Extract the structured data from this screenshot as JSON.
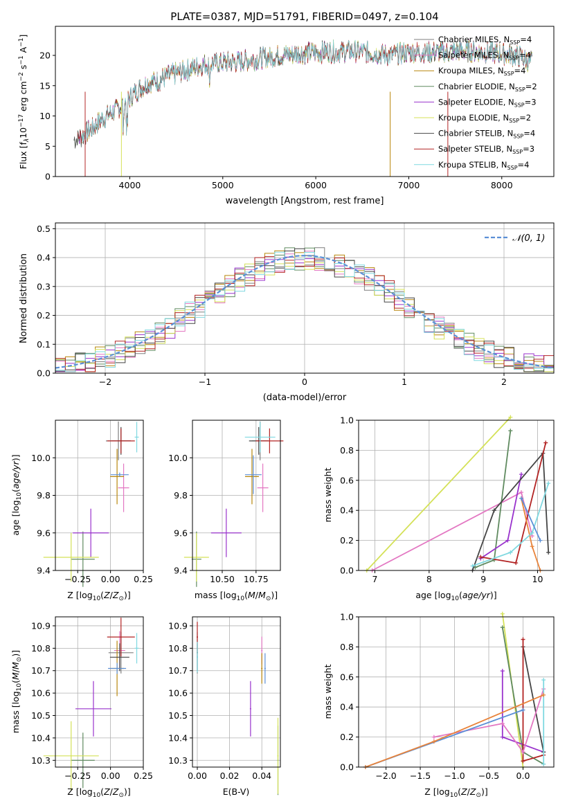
{
  "chart_data": [
    {
      "id": "spectrum",
      "type": "line",
      "title": "PLATE=0387, MJD=51791, FIBERID=0497, z=0.104",
      "xlabel": "wavelength [Angstrom, rest frame]",
      "ylabel": "Flux [f_λ 10^-17 erg cm^-2 s^-1 A^-1]",
      "xlim": [
        3200,
        8560
      ],
      "ylim": [
        0,
        24.8
      ],
      "xticks": [
        4000,
        5000,
        6000,
        7000,
        8000
      ],
      "yticks": [
        0,
        5,
        10,
        15,
        20
      ],
      "legend": "top-right",
      "x": [
        3400,
        3500,
        3600,
        3700,
        3800,
        3900,
        4000,
        4100,
        4200,
        4300,
        4400,
        4600,
        4800,
        5000,
        5200,
        5400,
        5600,
        5800,
        6000,
        6200,
        6400,
        6600,
        6800,
        7000,
        7200,
        7400,
        7600,
        7800,
        8000,
        8200,
        8300
      ],
      "y_envelope": [
        6.0,
        6.8,
        8.0,
        9.5,
        10.5,
        11.5,
        13.0,
        14.5,
        15.5,
        15.8,
        16.5,
        17.5,
        18.5,
        18.8,
        19.0,
        19.5,
        20.0,
        20.3,
        20.5,
        20.6,
        20.7,
        20.4,
        20.0,
        20.5,
        20.5,
        20.5,
        20.8,
        20.5,
        20.3,
        19.8,
        19.0
      ],
      "series": [
        {
          "name": "Chabrier MILES, N_SSP=4",
          "label_main": "Chabrier MILES, N",
          "label_sub": "SSP",
          "label_end": "=4",
          "color": "#7f7f7f"
        },
        {
          "name": "Salpeter MILES, N_SSP=4",
          "label_main": "Salpeter MILES, N",
          "label_sub": "SSP",
          "label_end": "=4",
          "color": "#e377c2"
        },
        {
          "name": "Kroupa MILES, N_SSP=4",
          "label_main": "Kroupa MILES, N",
          "label_sub": "SSP",
          "label_end": "=4",
          "color": "#b8860b"
        },
        {
          "name": "Chabrier ELODIE, N_SSP=2",
          "label_main": "Chabrier ELODIE, N",
          "label_sub": "SSP",
          "label_end": "=2",
          "color": "#5f8a5f"
        },
        {
          "name": "Salpeter ELODIE, N_SSP=3",
          "label_main": "Salpeter ELODIE, N",
          "label_sub": "SSP",
          "label_end": "=3",
          "color": "#9932cc"
        },
        {
          "name": "Kroupa ELODIE, N_SSP=2",
          "label_main": "Kroupa ELODIE, N",
          "label_sub": "SSP",
          "label_end": "=2",
          "color": "#d4e157"
        },
        {
          "name": "Chabrier STELIB, N_SSP=4",
          "label_main": "Chabrier STELIB, N",
          "label_sub": "SSP",
          "label_end": "=4",
          "color": "#444444"
        },
        {
          "name": "Salpeter STELIB, N_SSP=3",
          "label_main": "Salpeter STELIB, N",
          "label_sub": "SSP",
          "label_end": "=3",
          "color": "#b22222"
        },
        {
          "name": "Kroupa STELIB, N_SSP=4",
          "label_main": "Kroupa STELIB, N",
          "label_sub": "SSP",
          "label_end": "=4",
          "color": "#7fd8e0"
        }
      ]
    },
    {
      "id": "residuals",
      "type": "histogram",
      "xlabel": "(data-model)/error",
      "ylabel": "Normed distribution",
      "xlim": [
        -2.5,
        2.5
      ],
      "ylim": [
        0,
        0.52
      ],
      "xticks": [
        -2,
        -1,
        0,
        1,
        2
      ],
      "yticks": [
        0.0,
        0.1,
        0.2,
        0.3,
        0.4,
        0.5
      ],
      "grid": true,
      "legend": "top-right",
      "reference_curve": {
        "name": "N(0,1)",
        "label": "𝒩(0, 1)",
        "color": "#5b8fd6"
      }
    },
    {
      "id": "age-vs-Z",
      "type": "scatter",
      "xlabel": "Z [log10(Z/Z⊙)]",
      "ylabel": "age [log10(age/yr)]",
      "xlim": [
        -0.42,
        0.25
      ],
      "ylim": [
        9.4,
        10.2
      ],
      "xticks": [
        -0.25,
        0.0,
        0.25
      ],
      "yticks": [
        9.4,
        9.6,
        9.8,
        10.0
      ],
      "points": [
        {
          "x": 0.06,
          "y": 10.09,
          "color": "#7f7f7f"
        },
        {
          "x": 0.1,
          "y": 9.84,
          "color": "#e377c2"
        },
        {
          "x": 0.05,
          "y": 9.9,
          "color": "#b8860b"
        },
        {
          "x": -0.21,
          "y": 9.46,
          "color": "#5f8a5f"
        },
        {
          "x": -0.15,
          "y": 9.6,
          "color": "#9932cc"
        },
        {
          "x": -0.3,
          "y": 9.47,
          "color": "#d4e157"
        },
        {
          "x": 0.08,
          "y": 10.09,
          "color": "#444444"
        },
        {
          "x": 0.08,
          "y": 10.09,
          "color": "#b22222"
        },
        {
          "x": 0.07,
          "y": 9.91,
          "color": "#5b8fd6"
        },
        {
          "x": 0.2,
          "y": 10.11,
          "color": "#7fd8e0"
        }
      ]
    },
    {
      "id": "age-vs-mass",
      "type": "scatter",
      "xlabel": "mass [log10(M/M⊙)]",
      "xlim": [
        10.28,
        10.93
      ],
      "ylim": [
        9.4,
        10.2
      ],
      "xticks": [
        10.5,
        10.75
      ],
      "yticks": [
        9.4,
        9.6,
        9.8,
        10.0
      ],
      "points": [
        {
          "x": 10.78,
          "y": 10.09,
          "color": "#7f7f7f"
        },
        {
          "x": 10.8,
          "y": 9.84,
          "color": "#e377c2"
        },
        {
          "x": 10.72,
          "y": 9.9,
          "color": "#b8860b"
        },
        {
          "x": 10.31,
          "y": 9.46,
          "color": "#5f8a5f"
        },
        {
          "x": 10.53,
          "y": 9.6,
          "color": "#9932cc"
        },
        {
          "x": 10.31,
          "y": 9.47,
          "color": "#d4e157"
        },
        {
          "x": 10.77,
          "y": 10.09,
          "color": "#444444"
        },
        {
          "x": 10.85,
          "y": 10.09,
          "color": "#b22222"
        },
        {
          "x": 10.73,
          "y": 9.91,
          "color": "#5b8fd6"
        },
        {
          "x": 10.78,
          "y": 10.11,
          "color": "#7fd8e0"
        }
      ]
    },
    {
      "id": "massweight-vs-age",
      "type": "line",
      "xlabel": "age [log10(age/yr)]",
      "ylabel": "mass weight",
      "xlim": [
        6.7,
        10.3
      ],
      "ylim": [
        0,
        1.0
      ],
      "xticks": [
        7,
        8,
        9,
        10
      ],
      "yticks": [
        0.0,
        0.2,
        0.4,
        0.6,
        0.8,
        1.0
      ],
      "grid": true
    },
    {
      "id": "mass-vs-Z",
      "type": "scatter",
      "xlabel": "Z [log10(Z/Z⊙)]",
      "ylabel": "mass [log10(M/M⊙)]",
      "xlim": [
        -0.42,
        0.25
      ],
      "ylim": [
        10.27,
        10.94
      ],
      "xticks": [
        -0.25,
        0.0,
        0.25
      ],
      "yticks": [
        10.3,
        10.4,
        10.5,
        10.6,
        10.7,
        10.8,
        10.9
      ],
      "points": [
        {
          "x": 0.08,
          "y": 10.78,
          "color": "#7f7f7f"
        },
        {
          "x": 0.07,
          "y": 10.79,
          "color": "#e377c2"
        },
        {
          "x": 0.05,
          "y": 10.71,
          "color": "#b8860b"
        },
        {
          "x": -0.21,
          "y": 10.3,
          "color": "#5f8a5f"
        },
        {
          "x": -0.13,
          "y": 10.53,
          "color": "#9932cc"
        },
        {
          "x": -0.3,
          "y": 10.32,
          "color": "#d4e157"
        },
        {
          "x": 0.07,
          "y": 10.76,
          "color": "#444444"
        },
        {
          "x": 0.08,
          "y": 10.85,
          "color": "#b22222"
        },
        {
          "x": 0.05,
          "y": 10.71,
          "color": "#5b8fd6"
        },
        {
          "x": 0.2,
          "y": 10.8,
          "color": "#7fd8e0"
        }
      ]
    },
    {
      "id": "mass-vs-EBV",
      "type": "scatter",
      "xlabel": "E(B-V)",
      "xlim": [
        -0.003,
        0.0515
      ],
      "ylim": [
        10.27,
        10.94
      ],
      "xticks": [
        0.0,
        0.02,
        0.04
      ],
      "yticks": [
        10.3,
        10.4,
        10.5,
        10.6,
        10.7,
        10.8,
        10.9
      ],
      "points": [
        {
          "x": 0.0,
          "y": 10.78,
          "color": "#7f7f7f"
        },
        {
          "x": 0.04,
          "y": 10.79,
          "color": "#e377c2"
        },
        {
          "x": 0.04,
          "y": 10.71,
          "color": "#b8860b"
        },
        {
          "x": 0.05,
          "y": 10.3,
          "color": "#5f8a5f"
        },
        {
          "x": 0.033,
          "y": 10.53,
          "color": "#9932cc"
        },
        {
          "x": 0.05,
          "y": 10.32,
          "color": "#d4e157"
        },
        {
          "x": 0.0,
          "y": 10.76,
          "color": "#444444"
        },
        {
          "x": 0.0,
          "y": 10.85,
          "color": "#b22222"
        },
        {
          "x": 0.042,
          "y": 10.71,
          "color": "#5b8fd6"
        },
        {
          "x": 0.0,
          "y": 10.76,
          "color": "#7fd8e0"
        }
      ]
    },
    {
      "id": "massweight-vs-Z",
      "type": "line",
      "xlabel": "Z [log10(Z/Z⊙)]",
      "ylabel": "mass weight",
      "xlim": [
        -2.4,
        0.45
      ],
      "ylim": [
        0,
        1.0
      ],
      "xticks": [
        -2.0,
        -1.5,
        -1.0,
        -0.5,
        0.0
      ],
      "yticks": [
        0.0,
        0.2,
        0.4,
        0.6,
        0.8,
        1.0
      ],
      "grid": true
    }
  ]
}
